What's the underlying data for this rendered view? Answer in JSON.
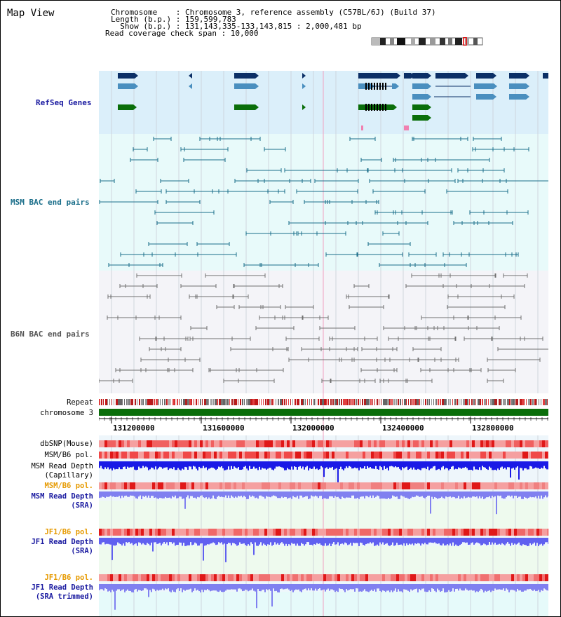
{
  "title": "Map View",
  "info": {
    "chromosome_line": "Chromosome    : Chromosome 3, reference assembly (C57BL/6J) (Build 37)",
    "length_line": "Length (b.p.) : 159,599,783",
    "show_line": "  Show (b.p.) : 131,143,335-133,143,815 : 2,000,481 bp",
    "coverage_line": "Read coverage check span : 10,000"
  },
  "tracks": {
    "refseq": "RefSeq Genes",
    "msm_bac": "MSM BAC end pairs",
    "b6n_bac": "B6N BAC end pairs",
    "repeat": "Repeat",
    "chromosome": "chromosome 3",
    "dbsnp": "dbSNP(Mouse)",
    "msm_b6_pol": "MSM/B6 pol.",
    "msm_read_depth_cap_1": "MSM Read Depth",
    "msm_read_depth_cap_2": "(Capillary)",
    "msm_b6_pol_2": "MSM/B6 pol.",
    "msm_read_depth_sra_1": "MSM Read Depth",
    "msm_read_depth_sra_2": "(SRA)",
    "jf1_b6_pol": "JF1/B6 pol.",
    "jf1_read_depth_sra_1": "JF1 Read Depth",
    "jf1_read_depth_sra_2": "(SRA)",
    "jf1_b6_pol_2": "JF1/B6 pol.",
    "jf1_read_depth_trim_1": "JF1 Read Depth",
    "jf1_read_depth_trim_2": "(SRA trimmed)"
  },
  "axis_ticks": [
    "131200000",
    "131600000",
    "132000000",
    "132400000",
    "132800000"
  ],
  "colors": {
    "refseq_bg": "#dbeffa",
    "msm_bg": "#e8fafa",
    "b6n_bg": "#f4f4f8",
    "navy": "#0b2f66",
    "steel": "#4a8fbf",
    "green": "#0a6e0a",
    "teal": "#1a6e8a",
    "grey": "#707070",
    "blue_depth": "#1a1ae6",
    "light_blue_depth": "#8080f0",
    "label_blue": "#1a1aa0",
    "label_teal": "#1a6e8a",
    "label_orange": "#e69a00"
  }
}
